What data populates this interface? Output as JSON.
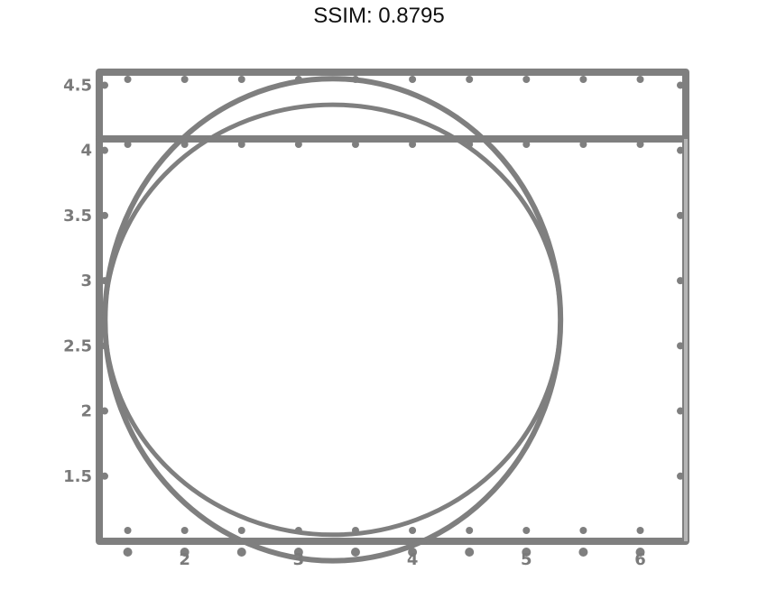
{
  "title": "SSIM: 0.8795",
  "chart_data": {
    "type": "line",
    "title": "SSIM: 0.8795",
    "xlabel": "",
    "ylabel": "",
    "xlim": [
      1.25,
      6.4
    ],
    "ylim": [
      1.0,
      4.6
    ],
    "x_ticks": [
      1.5,
      2,
      2.5,
      3,
      3.5,
      4,
      4.5,
      5,
      5.5,
      6
    ],
    "x_tick_labels": [
      "",
      "2",
      "",
      "3",
      "",
      "4",
      "",
      "5",
      "",
      "6"
    ],
    "y_ticks": [
      1.5,
      2,
      2.5,
      3,
      3.5,
      4,
      4.5
    ],
    "y_tick_labels": [
      "1.5",
      "2",
      "2.5",
      "3",
      "3.5",
      "4",
      "4.5"
    ],
    "grid": false,
    "line_color": "#7f7f7f",
    "series": [
      {
        "shape": "circle",
        "cx": 3.3,
        "cy": 2.7,
        "rx": 2.0,
        "ry": 1.85
      },
      {
        "shape": "ellipse",
        "cx": 3.3,
        "cy": 2.7,
        "rx": 2.0,
        "ry": 1.65
      }
    ]
  }
}
